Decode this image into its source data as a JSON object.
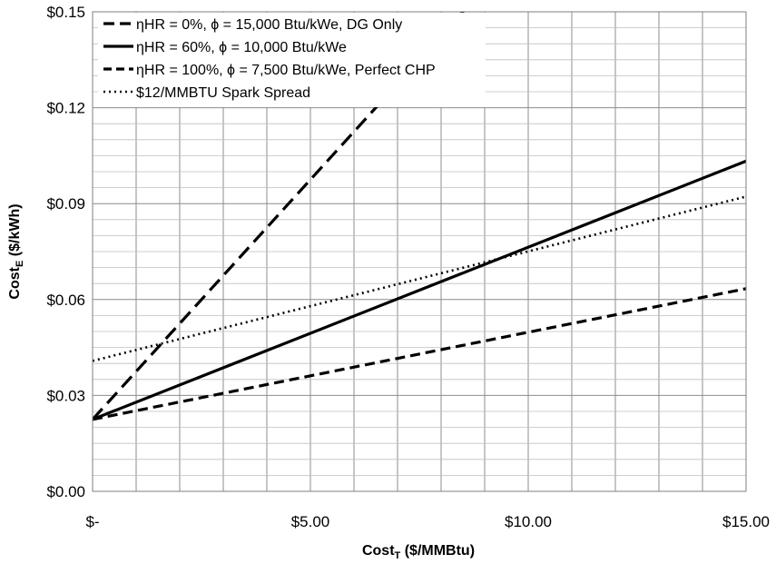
{
  "chart_data": {
    "type": "line",
    "xlabel": {
      "main": "Cost",
      "sub": "T",
      "rest": " ($/MMBtu)"
    },
    "ylabel": {
      "main": "Cost",
      "sub": "E",
      "rest": " ($/kWh)"
    },
    "xlim": [
      0,
      15
    ],
    "ylim": [
      0,
      0.15
    ],
    "xticks": [
      {
        "value": 0,
        "label": "$-"
      },
      {
        "value": 5,
        "label": "$5.00"
      },
      {
        "value": 10,
        "label": "$10.00"
      },
      {
        "value": 15,
        "label": "$15.00"
      }
    ],
    "yticks": [
      {
        "value": 0,
        "label": "$0.00"
      },
      {
        "value": 0.03,
        "label": "$0.03"
      },
      {
        "value": 0.06,
        "label": "$0.06"
      },
      {
        "value": 0.09,
        "label": "$0.09"
      },
      {
        "value": 0.12,
        "label": "$0.12"
      },
      {
        "value": 0.15,
        "label": "$0.15"
      }
    ],
    "grid": true,
    "legend_position": "top-left",
    "series": [
      {
        "name": "ηHR = 0%, ϕ = 15,000 Btu/kWe, DG Only",
        "style": "long-dash",
        "color": "#000000",
        "x": [
          0,
          8.6
        ],
        "y": [
          0.0225,
          0.1515
        ]
      },
      {
        "name": "ηHR = 60%, ϕ = 10,000 Btu/kWe",
        "style": "solid",
        "color": "#000000",
        "x": [
          0,
          15
        ],
        "y": [
          0.0225,
          0.1033
        ]
      },
      {
        "name": "ηHR = 100%, ϕ = 7,500 Btu/kWe, Perfect CHP",
        "style": "dash",
        "color": "#000000",
        "x": [
          0,
          15
        ],
        "y": [
          0.0225,
          0.0634
        ]
      },
      {
        "name": "$12/MMBTU Spark Spread",
        "style": "dotted",
        "color": "#000000",
        "x": [
          0,
          15
        ],
        "y": [
          0.0408,
          0.0922
        ]
      }
    ]
  }
}
